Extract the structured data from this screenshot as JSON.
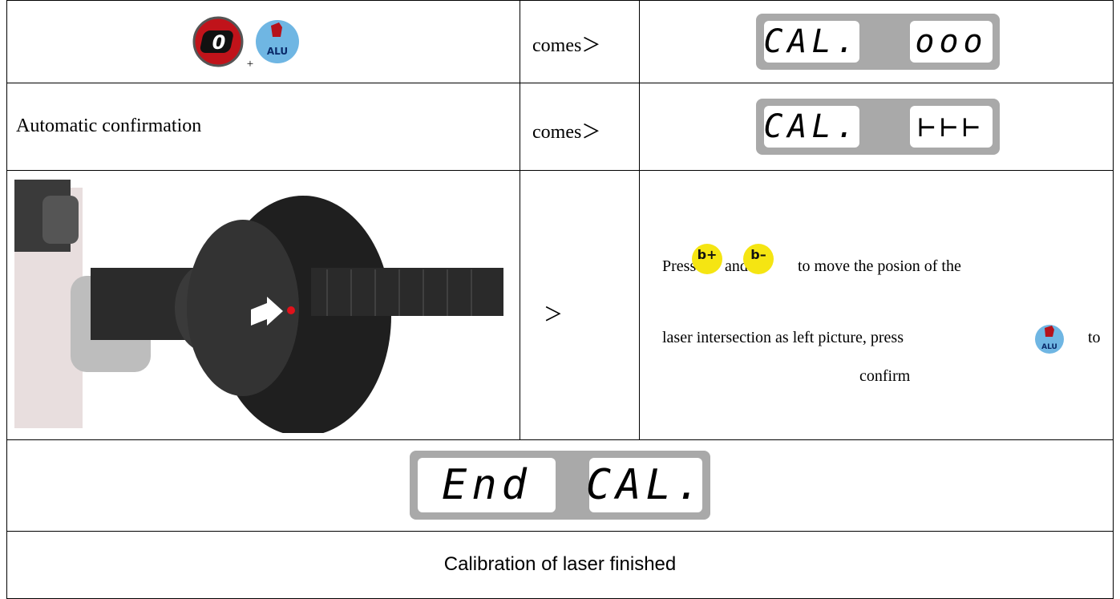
{
  "table": {
    "rows": [
      {
        "icon_left": "0",
        "plus": "+",
        "icon_right": "ALU",
        "arrow": "comes＞",
        "display": [
          "CAL.",
          "ooo"
        ]
      },
      {
        "label": "Automatic confirmation",
        "arrow": "comes＞",
        "display": [
          "CAL.",
          "⊢⊢⊢"
        ]
      },
      {
        "arrow": "＞",
        "instruction": {
          "press": "Press",
          "key_up": "b+",
          "and": "and",
          "key_down": "b–",
          "line1": "to move the posion of the",
          "line2": "laser intersection as left picture, press",
          "key_confirm": "ALU",
          "to": "to",
          "line3": "confirm"
        }
      },
      {
        "display": [
          "End",
          "CAL."
        ]
      },
      {
        "label": "Calibration of laser finished"
      }
    ]
  }
}
